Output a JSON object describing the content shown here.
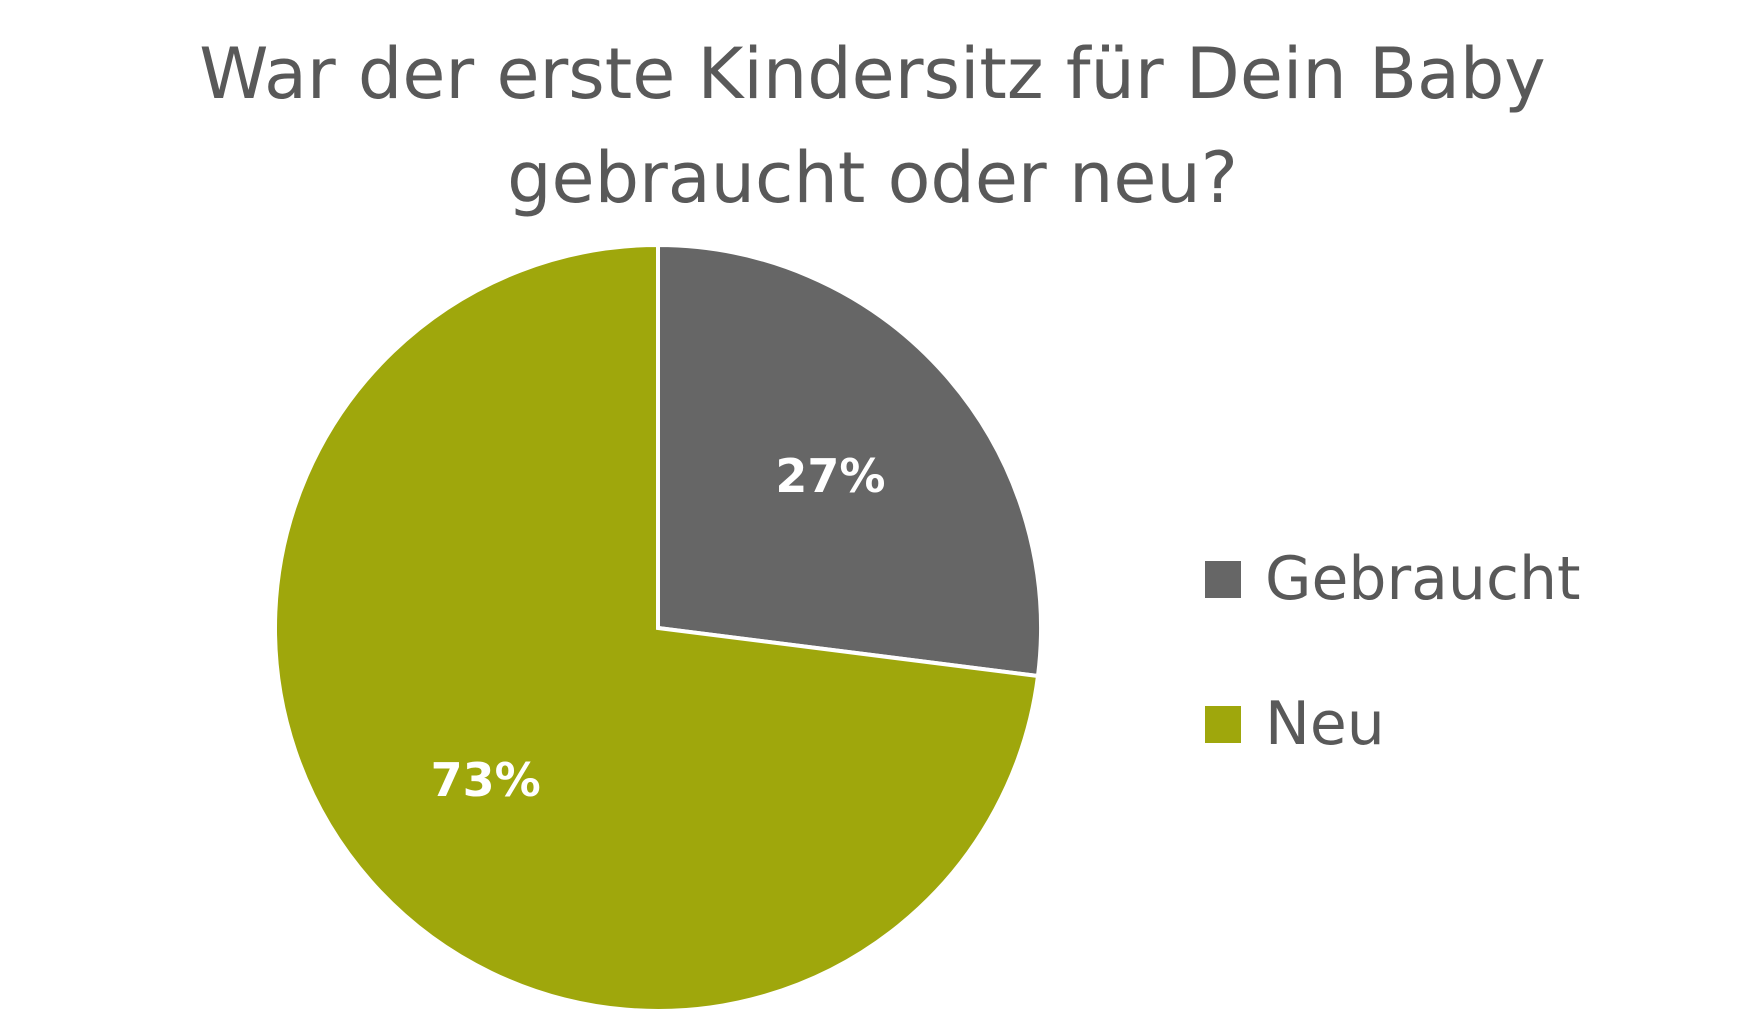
{
  "chart_data": {
    "type": "pie",
    "title_lines": [
      "War der erste Kindersitz für Dein Baby",
      "gebraucht oder neu?"
    ],
    "categories": [
      "Gebraucht",
      "Neu"
    ],
    "values": [
      27,
      73
    ],
    "labels": [
      "27%",
      "73%"
    ],
    "colors": [
      "#666666",
      "#9fa70c"
    ],
    "legend_position": "right"
  }
}
